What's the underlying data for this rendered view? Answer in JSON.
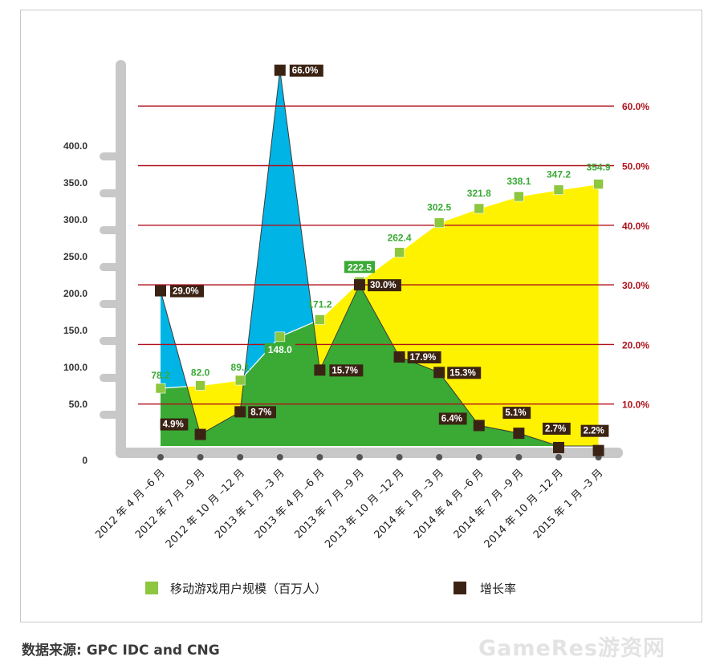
{
  "source_label": "数据来源: GPC IDC and CNG",
  "watermark": "GameRes游资网",
  "chart_data": {
    "type": "area",
    "categories": [
      "2012 年 4 月 –6 月",
      "2012 年 7 月 –9 月",
      "2012 年 10 月 –12 月",
      "2013 年 1 月 –3 月",
      "2013 年 4 月 –6 月",
      "2013 年 7 月 –9 月",
      "2013 年 10 月 –12 月",
      "2014 年 1 月 –3 月",
      "2014 年 4 月 –6 月",
      "2014 年 7 月 –9 月",
      "2014 年 10 月 –12 月",
      "2015 年 1 月 –3 月"
    ],
    "series": [
      {
        "name": "移动游戏用户规模（百万人）",
        "axis": "left",
        "color": "#8dc63f",
        "values": [
          78.2,
          82.0,
          89.1,
          148.0,
          171.2,
          222.5,
          262.4,
          302.5,
          321.8,
          338.1,
          347.2,
          354.9
        ],
        "labels": [
          "78.2",
          "82.0",
          "89.1",
          "148.0",
          "171.2",
          "222.5",
          "262.4",
          "302.5",
          "321.8",
          "338.1",
          "347.2",
          "354.9"
        ]
      },
      {
        "name": "增长率",
        "axis": "right",
        "color": "#3b2314",
        "values": [
          29.0,
          4.9,
          8.7,
          66.0,
          15.7,
          30.0,
          17.9,
          15.3,
          6.4,
          5.1,
          2.7,
          2.2
        ],
        "labels": [
          "29.0%",
          "4.9%",
          "8.7%",
          "66.0%",
          "15.7%",
          "30.0%",
          "17.9%",
          "15.3%",
          "6.4%",
          "5.1%",
          "2.7%",
          "2.2%"
        ]
      }
    ],
    "y_left_ticks": [
      "0",
      "50.0",
      "100.0",
      "150.0",
      "200.0",
      "250.0",
      "300.0",
      "350.0",
      "400.0"
    ],
    "y_left_tick_values": [
      0,
      50,
      100,
      150,
      200,
      250,
      300,
      350,
      400
    ],
    "y_right_ticks": [
      "10.0%",
      "20.0%",
      "30.0%",
      "40.0%",
      "50.0%",
      "60.0%"
    ],
    "y_right_tick_values": [
      10,
      20,
      30,
      40,
      50,
      60
    ],
    "colors": {
      "area_growth": "#00b5e6",
      "area_users_high": "#fff200",
      "area_users_low": "#3aaa35",
      "gridline": "#b0111b",
      "axis_bar": "#c8c8c8",
      "right_tick_text": "#b0111b"
    }
  },
  "legend": [
    {
      "label": "移动游戏用户规模（百万人）",
      "color": "#8dc63f"
    },
    {
      "label": "增长率",
      "color": "#3b2314"
    }
  ]
}
